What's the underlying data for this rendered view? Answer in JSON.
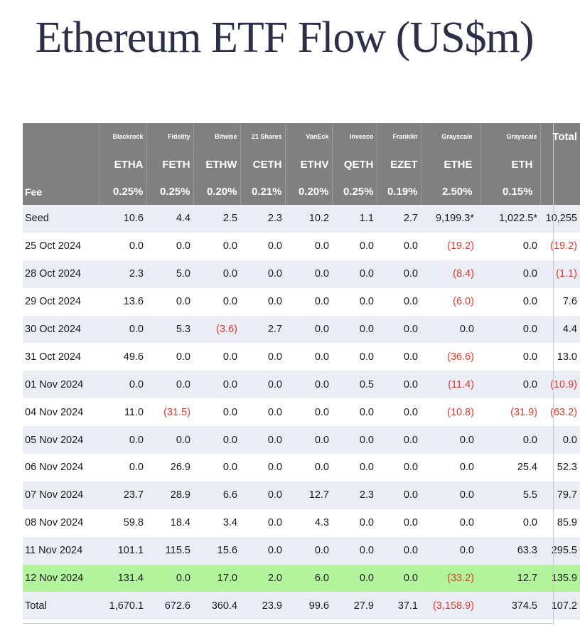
{
  "title": "Ethereum ETF Flow (US$m)",
  "header": {
    "issuers": [
      "Blackrock",
      "Fidelity",
      "Bitwise",
      "21 Shares",
      "VanEck",
      "Invesco",
      "Franklin",
      "Grayscale",
      "Grayscale"
    ],
    "total_label": "Total",
    "tickers": [
      "ETHA",
      "FETH",
      "ETHW",
      "CETH",
      "ETHV",
      "QETH",
      "EZET",
      "ETHE",
      "ETH"
    ],
    "fee_label": "Fee",
    "fees": [
      "0.25%",
      "0.25%",
      "0.20%",
      "0.21%",
      "0.20%",
      "0.25%",
      "0.19%",
      "2.50%",
      "0.15%"
    ]
  },
  "rows": [
    {
      "label": "Seed",
      "values": [
        "10.6",
        "4.4",
        "2.5",
        "2.3",
        "10.2",
        "1.1",
        "2.7",
        "9,199.3*",
        "1,022.5*",
        "10,255"
      ],
      "highlight": false
    },
    {
      "label": "25 Oct 2024",
      "values": [
        "0.0",
        "0.0",
        "0.0",
        "0.0",
        "0.0",
        "0.0",
        "0.0",
        "(19.2)",
        "0.0",
        "(19.2)"
      ],
      "highlight": false
    },
    {
      "label": "28 Oct 2024",
      "values": [
        "2.3",
        "5.0",
        "0.0",
        "0.0",
        "0.0",
        "0.0",
        "0.0",
        "(8.4)",
        "0.0",
        "(1.1)"
      ],
      "highlight": false
    },
    {
      "label": "29 Oct 2024",
      "values": [
        "13.6",
        "0.0",
        "0.0",
        "0.0",
        "0.0",
        "0.0",
        "0.0",
        "(6.0)",
        "0.0",
        "7.6"
      ],
      "highlight": false
    },
    {
      "label": "30 Oct 2024",
      "values": [
        "0.0",
        "5.3",
        "(3.6)",
        "2.7",
        "0.0",
        "0.0",
        "0.0",
        "0.0",
        "0.0",
        "4.4"
      ],
      "highlight": false
    },
    {
      "label": "31 Oct 2024",
      "values": [
        "49.6",
        "0.0",
        "0.0",
        "0.0",
        "0.0",
        "0.0",
        "0.0",
        "(36.6)",
        "0.0",
        "13.0"
      ],
      "highlight": false
    },
    {
      "label": "01 Nov 2024",
      "values": [
        "0.0",
        "0.0",
        "0.0",
        "0.0",
        "0.0",
        "0.5",
        "0.0",
        "(11.4)",
        "0.0",
        "(10.9)"
      ],
      "highlight": false
    },
    {
      "label": "04 Nov 2024",
      "values": [
        "11.0",
        "(31.5)",
        "0.0",
        "0.0",
        "0.0",
        "0.0",
        "0.0",
        "(10.8)",
        "(31.9)",
        "(63.2)"
      ],
      "highlight": false
    },
    {
      "label": "05 Nov 2024",
      "values": [
        "0.0",
        "0.0",
        "0.0",
        "0.0",
        "0.0",
        "0.0",
        "0.0",
        "0.0",
        "0.0",
        "0.0"
      ],
      "highlight": false
    },
    {
      "label": "06 Nov 2024",
      "values": [
        "0.0",
        "26.9",
        "0.0",
        "0.0",
        "0.0",
        "0.0",
        "0.0",
        "0.0",
        "25.4",
        "52.3"
      ],
      "highlight": false
    },
    {
      "label": "07 Nov 2024",
      "values": [
        "23.7",
        "28.9",
        "6.6",
        "0.0",
        "12.7",
        "2.3",
        "0.0",
        "0.0",
        "5.5",
        "79.7"
      ],
      "highlight": false
    },
    {
      "label": "08 Nov 2024",
      "values": [
        "59.8",
        "18.4",
        "3.4",
        "0.0",
        "4.3",
        "0.0",
        "0.0",
        "0.0",
        "0.0",
        "85.9"
      ],
      "highlight": false
    },
    {
      "label": "11 Nov 2024",
      "values": [
        "101.1",
        "115.5",
        "15.6",
        "0.0",
        "0.0",
        "0.0",
        "0.0",
        "0.0",
        "63.3",
        "295.5"
      ],
      "highlight": false
    },
    {
      "label": "12 Nov 2024",
      "values": [
        "131.4",
        "0.0",
        "17.0",
        "2.0",
        "6.0",
        "0.0",
        "0.0",
        "(33.2)",
        "12.7",
        "135.9"
      ],
      "highlight": true
    },
    {
      "label": "Total",
      "values": [
        "1,670.1",
        "672.6",
        "360.4",
        "23.9",
        "99.6",
        "27.9",
        "37.1",
        "(3,158.9)",
        "374.5",
        "107.2"
      ],
      "highlight": false
    }
  ],
  "colors": {
    "header_bg": "#808080",
    "stripe": "#eaedf5",
    "highlight": "#b1f49c",
    "negative": "#e0392b"
  }
}
